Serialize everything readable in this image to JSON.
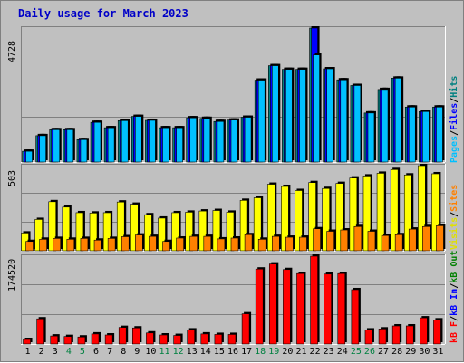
{
  "title": "Daily usage for March 2023",
  "panels": [
    {
      "key": "hits_files_pages",
      "ymax_label": "4728",
      "legend": [
        {
          "text": "Pages",
          "color": "#00c0ff"
        },
        {
          "text": "/",
          "color": "#000000"
        },
        {
          "text": "Files",
          "color": "#0000ff"
        },
        {
          "text": "/",
          "color": "#000000"
        },
        {
          "text": "Hits",
          "color": "#008080"
        }
      ]
    },
    {
      "key": "visits_sites",
      "ymax_label": "503",
      "legend": [
        {
          "text": "Visits",
          "color": "#e0e000"
        },
        {
          "text": "/",
          "color": "#000000"
        },
        {
          "text": "Sites",
          "color": "#ff8000"
        }
      ]
    },
    {
      "key": "kbytes",
      "ymax_label": "174520",
      "legend": [
        {
          "text": "kB F",
          "color": "#ff0000"
        },
        {
          "text": "/",
          "color": "#000000"
        },
        {
          "text": "kB In",
          "color": "#0000ff"
        },
        {
          "text": "/",
          "color": "#000000"
        },
        {
          "text": "kB Out",
          "color": "#008000"
        }
      ]
    }
  ],
  "colors": {
    "hits": "#008080",
    "files": "#0000ff",
    "pages": "#00c0ff",
    "visits": "#ffff00",
    "sites": "#ff8000",
    "kbf": "#ff0000",
    "weekday": "#000000",
    "weekend": "#008040"
  },
  "chart_data": {
    "type": "bar",
    "title": "Daily usage for March 2023",
    "categories": [
      "1",
      "2",
      "3",
      "4",
      "5",
      "6",
      "7",
      "8",
      "9",
      "10",
      "11",
      "12",
      "13",
      "14",
      "15",
      "16",
      "17",
      "18",
      "19",
      "20",
      "21",
      "22",
      "23",
      "24",
      "25",
      "26",
      "27",
      "28",
      "29",
      "30",
      "31"
    ],
    "weekend_days": [
      "4",
      "5",
      "11",
      "12",
      "18",
      "19",
      "25",
      "26"
    ],
    "charts": [
      {
        "name": "hits_files_pages",
        "ylim": [
          0,
          4728
        ],
        "series": [
          {
            "name": "Hits",
            "values": [
              380,
              930,
              1140,
              1140,
              790,
              1400,
              1210,
              1460,
              1610,
              1470,
              1210,
              1210,
              1560,
              1540,
              1430,
              1480,
              1580,
              2890,
              3400,
              3270,
              3270,
              4728,
              3290,
              2900,
              2700,
              1730,
              2560,
              2960,
              1940,
              1780,
              1940
            ]
          },
          {
            "name": "Files",
            "values": [
              380,
              930,
              1140,
              1140,
              790,
              1400,
              1210,
              1460,
              1610,
              1470,
              1210,
              1210,
              1560,
              1540,
              1430,
              1480,
              1580,
              2890,
              3400,
              3270,
              3270,
              4728,
              3290,
              2900,
              2700,
              1730,
              2560,
              2960,
              1940,
              1780,
              1940
            ]
          },
          {
            "name": "Pages",
            "values": [
              380,
              930,
              1140,
              1140,
              790,
              1400,
              1210,
              1460,
              1610,
              1470,
              1210,
              1210,
              1560,
              1540,
              1430,
              1480,
              1580,
              2890,
              3400,
              3270,
              3270,
              3780,
              3290,
              2900,
              2700,
              1730,
              2560,
              2960,
              1940,
              1780,
              1940
            ]
          }
        ]
      },
      {
        "name": "visits_sites",
        "ylim": [
          0,
          503
        ],
        "series": [
          {
            "name": "Visits",
            "values": [
              105,
              185,
              290,
              258,
              225,
              223,
              225,
              288,
              275,
              213,
              193,
              225,
              228,
              235,
              238,
              228,
              298,
              313,
              393,
              380,
              356,
              403,
              368,
              398,
              430,
              442,
              458,
              480,
              448,
              503,
              455
            ]
          },
          {
            "name": "Sites",
            "values": [
              55,
              68,
              73,
              68,
              73,
              63,
              73,
              83,
              93,
              85,
              55,
              75,
              85,
              85,
              70,
              75,
              95,
              68,
              85,
              80,
              80,
              130,
              115,
              123,
              143,
              115,
              90,
              95,
              128,
              143,
              148
            ]
          }
        ]
      },
      {
        "name": "kbytes",
        "ylim": [
          0,
          174520
        ],
        "series": [
          {
            "name": "kB F",
            "values": [
              9000,
              50000,
              16000,
              15000,
              14000,
              20000,
              18000,
              33000,
              32000,
              22000,
              18000,
              17000,
              28000,
              20000,
              19000,
              19000,
              60000,
              149000,
              159000,
              148000,
              140000,
              174520,
              139000,
              140000,
              108000,
              28000,
              30000,
              36000,
              36000,
              52000,
              48000
            ]
          }
        ]
      }
    ]
  }
}
